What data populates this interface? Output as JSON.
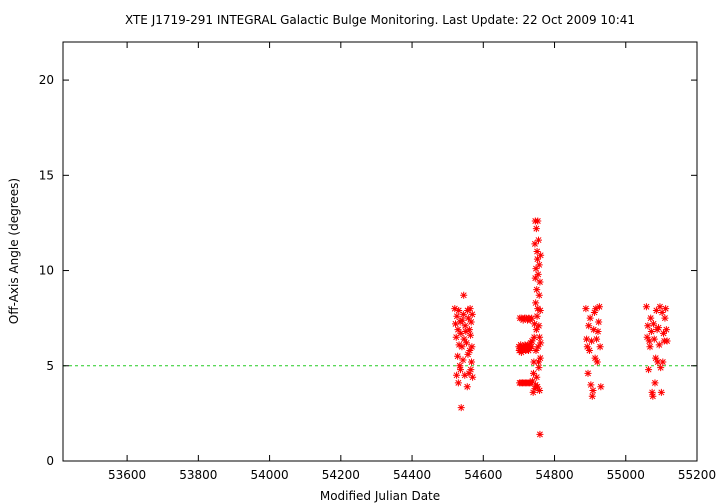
{
  "chart_data": {
    "type": "scatter",
    "title": "XTE J1719-291   INTEGRAL Galactic Bulge Monitoring.  Last Update: 22 Oct 2009 10:41",
    "xlabel": "Modified Julian Date",
    "ylabel": "Off-Axis Angle (degrees)",
    "xlim": [
      53420,
      55200
    ],
    "ylim": [
      0,
      22
    ],
    "xticks": [
      53600,
      53800,
      54000,
      54200,
      54400,
      54600,
      54800,
      55000,
      55200
    ],
    "yticks": [
      0,
      5,
      10,
      15,
      20
    ],
    "grid": false,
    "legend": "none",
    "marker": "asterisk",
    "colors": {
      "points": "#ff0000",
      "reference_line": "#22cc22"
    },
    "reference_line": {
      "y": 5,
      "style": "dashed"
    },
    "series": [
      {
        "points": [
          [
            54520,
            8.0
          ],
          [
            54522,
            7.2
          ],
          [
            54524,
            6.5
          ],
          [
            54525,
            4.5
          ],
          [
            54526,
            7.6
          ],
          [
            54528,
            5.5
          ],
          [
            54529,
            6.9
          ],
          [
            54530,
            4.1
          ],
          [
            54531,
            7.9
          ],
          [
            54532,
            6.1
          ],
          [
            54534,
            5.0
          ],
          [
            54535,
            7.3
          ],
          [
            54536,
            4.8
          ],
          [
            54537,
            6.7
          ],
          [
            54538,
            2.8
          ],
          [
            54540,
            6.0
          ],
          [
            54541,
            7.4
          ],
          [
            54543,
            5.3
          ],
          [
            54544,
            7.7
          ],
          [
            54545,
            8.7
          ],
          [
            54546,
            6.4
          ],
          [
            54548,
            4.5
          ],
          [
            54549,
            7.1
          ],
          [
            54551,
            6.8
          ],
          [
            54553,
            6.2
          ],
          [
            54555,
            3.9
          ],
          [
            54556,
            7.9
          ],
          [
            54557,
            5.6
          ],
          [
            54558,
            7.5
          ],
          [
            54560,
            4.6
          ],
          [
            54561,
            6.9
          ],
          [
            54562,
            5.8
          ],
          [
            54563,
            8.0
          ],
          [
            54564,
            6.6
          ],
          [
            54565,
            4.8
          ],
          [
            54566,
            7.3
          ],
          [
            54567,
            5.2
          ],
          [
            54568,
            6.0
          ],
          [
            54569,
            7.7
          ],
          [
            54570,
            4.4
          ],
          [
            54700,
            6.0
          ],
          [
            54701,
            5.8
          ],
          [
            54702,
            4.1
          ],
          [
            54703,
            7.5
          ],
          [
            54704,
            5.9
          ],
          [
            54705,
            6.1
          ],
          [
            54706,
            4.1
          ],
          [
            54707,
            5.7
          ],
          [
            54708,
            7.5
          ],
          [
            54709,
            6.0
          ],
          [
            54710,
            4.1
          ],
          [
            54711,
            5.8
          ],
          [
            54712,
            7.4
          ],
          [
            54713,
            6.0
          ],
          [
            54714,
            4.1
          ],
          [
            54715,
            5.9
          ],
          [
            54716,
            7.5
          ],
          [
            54717,
            6.1
          ],
          [
            54718,
            4.1
          ],
          [
            54719,
            5.8
          ],
          [
            54720,
            7.5
          ],
          [
            54721,
            6.0
          ],
          [
            54722,
            4.1
          ],
          [
            54723,
            5.9
          ],
          [
            54724,
            7.4
          ],
          [
            54725,
            6.1
          ],
          [
            54726,
            4.1
          ],
          [
            54727,
            5.8
          ],
          [
            54728,
            7.5
          ],
          [
            54729,
            6.0
          ],
          [
            54730,
            4.1
          ],
          [
            54731,
            5.9
          ],
          [
            54732,
            7.4
          ],
          [
            54733,
            6.2
          ],
          [
            54734,
            4.1
          ],
          [
            54735,
            6.0
          ],
          [
            54736,
            7.5
          ],
          [
            54737,
            6.3
          ],
          [
            54738,
            4.2
          ],
          [
            54740,
            3.6
          ],
          [
            54741,
            4.6
          ],
          [
            54742,
            5.2
          ],
          [
            54743,
            6.5
          ],
          [
            54744,
            7.2
          ],
          [
            54745,
            3.8
          ],
          [
            54745,
            11.4
          ],
          [
            54746,
            9.6
          ],
          [
            54746,
            12.6
          ],
          [
            54747,
            8.3
          ],
          [
            54747,
            4.0
          ],
          [
            54748,
            10.1
          ],
          [
            54748,
            5.8
          ],
          [
            54749,
            12.2
          ],
          [
            54749,
            6.9
          ],
          [
            54750,
            9.0
          ],
          [
            54750,
            4.4
          ],
          [
            54751,
            11.0
          ],
          [
            54751,
            7.6
          ],
          [
            54752,
            10.6
          ],
          [
            54752,
            3.9
          ],
          [
            54753,
            8.0
          ],
          [
            54753,
            12.6
          ],
          [
            54754,
            9.8
          ],
          [
            54754,
            6.0
          ],
          [
            54755,
            5.2
          ],
          [
            54755,
            11.6
          ],
          [
            54756,
            7.1
          ],
          [
            54756,
            4.9
          ],
          [
            54757,
            10.3
          ],
          [
            54757,
            8.7
          ],
          [
            54758,
            6.5
          ],
          [
            54758,
            3.7
          ],
          [
            54759,
            1.4
          ],
          [
            54759,
            9.4
          ],
          [
            54760,
            7.9
          ],
          [
            54760,
            5.4
          ],
          [
            54761,
            10.8
          ],
          [
            54761,
            6.2
          ],
          [
            54888,
            8.0
          ],
          [
            54890,
            6.4
          ],
          [
            54892,
            6.0
          ],
          [
            54894,
            4.6
          ],
          [
            54896,
            7.1
          ],
          [
            54898,
            5.8
          ],
          [
            54900,
            7.5
          ],
          [
            54902,
            4.0
          ],
          [
            54904,
            6.3
          ],
          [
            54906,
            3.4
          ],
          [
            54908,
            3.7
          ],
          [
            54910,
            6.9
          ],
          [
            54912,
            7.8
          ],
          [
            54914,
            5.4
          ],
          [
            54916,
            8.0
          ],
          [
            54918,
            6.4
          ],
          [
            54920,
            5.2
          ],
          [
            54922,
            6.8
          ],
          [
            54924,
            7.3
          ],
          [
            54926,
            8.1
          ],
          [
            54928,
            6.0
          ],
          [
            54930,
            3.9
          ],
          [
            55058,
            8.1
          ],
          [
            55060,
            6.5
          ],
          [
            55062,
            7.1
          ],
          [
            55064,
            4.8
          ],
          [
            55066,
            6.3
          ],
          [
            55068,
            6.0
          ],
          [
            55070,
            7.5
          ],
          [
            55072,
            6.8
          ],
          [
            55074,
            3.6
          ],
          [
            55076,
            3.4
          ],
          [
            55078,
            7.2
          ],
          [
            55080,
            6.4
          ],
          [
            55082,
            4.1
          ],
          [
            55084,
            5.4
          ],
          [
            55086,
            7.9
          ],
          [
            55088,
            6.9
          ],
          [
            55090,
            5.2
          ],
          [
            55092,
            7.0
          ],
          [
            55094,
            6.1
          ],
          [
            55096,
            8.1
          ],
          [
            55098,
            4.9
          ],
          [
            55100,
            3.6
          ],
          [
            55102,
            7.8
          ],
          [
            55104,
            5.2
          ],
          [
            55106,
            6.7
          ],
          [
            55108,
            6.3
          ],
          [
            55110,
            7.5
          ],
          [
            55112,
            8.0
          ],
          [
            55114,
            6.9
          ],
          [
            55116,
            6.3
          ]
        ]
      }
    ]
  }
}
